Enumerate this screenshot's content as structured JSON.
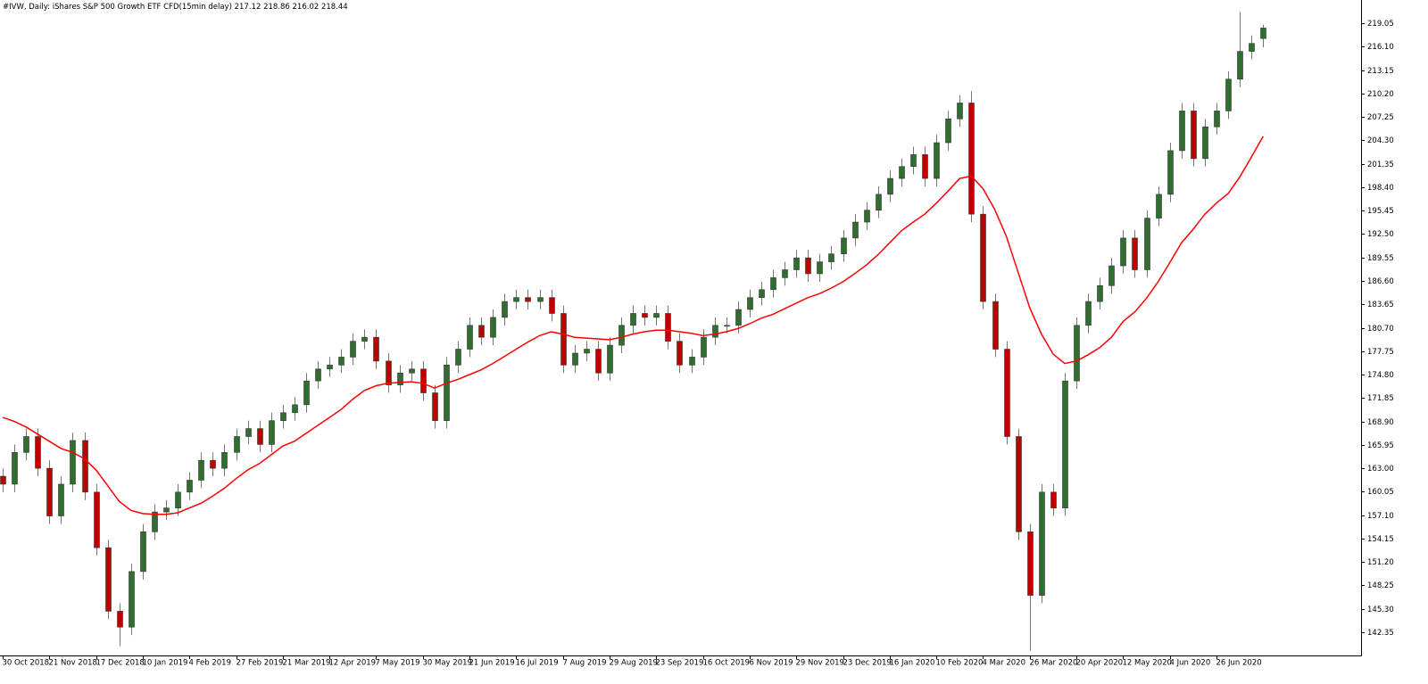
{
  "chart_data": {
    "type": "candlestick",
    "title": "#IVW, Daily:  iShares S&P 500 Growth ETF CFD(15min delay)",
    "categories": [
      "30 Oct 2018",
      null,
      null,
      null,
      "21 Nov 2018",
      null,
      null,
      null,
      "17 Dec 2018",
      null,
      null,
      null,
      "10 Jan 2019",
      null,
      null,
      null,
      "4 Feb 2019",
      null,
      null,
      null,
      "27 Feb 2019",
      null,
      null,
      null,
      "21 Mar 2019",
      null,
      null,
      null,
      "12 Apr 2019",
      null,
      null,
      null,
      "7 May 2019",
      null,
      null,
      null,
      "30 May 2019",
      null,
      null,
      null,
      "21 Jun 2019",
      null,
      null,
      null,
      "16 Jul 2019",
      null,
      null,
      null,
      "7 Aug 2019",
      null,
      null,
      null,
      "29 Aug 2019",
      null,
      null,
      null,
      "23 Sep 2019",
      null,
      null,
      null,
      "16 Oct 2019",
      null,
      null,
      null,
      "6 Nov 2019",
      null,
      null,
      null,
      "29 Nov 2019",
      null,
      null,
      null,
      "23 Dec 2019",
      null,
      null,
      null,
      "16 Jan 2020",
      null,
      null,
      null,
      "10 Feb 2020",
      null,
      null,
      null,
      "4 Mar 2020",
      null,
      null,
      null,
      "26 Mar 2020",
      null,
      null,
      null,
      "20 Apr 2020",
      null,
      null,
      null,
      "12 May 2020",
      null,
      null,
      null,
      "4 Jun 2020",
      null,
      null,
      null,
      "26 Jun 2020",
      null,
      null,
      null,
      null
    ],
    "open": [
      162,
      161,
      165,
      167,
      163,
      157,
      161,
      166.5,
      160,
      153,
      145,
      143,
      150,
      155,
      157.5,
      158,
      160,
      161.5,
      164,
      163,
      165,
      167,
      168,
      166,
      169,
      170,
      171,
      174,
      175.5,
      176,
      177,
      179,
      179.5,
      176.5,
      173.5,
      175,
      175.5,
      172.5,
      169,
      176,
      178,
      181,
      179.5,
      182,
      184,
      184.5,
      184,
      184.5,
      182.5,
      176,
      177.5,
      178,
      175,
      178.5,
      181,
      182.5,
      182,
      182.5,
      179,
      176,
      177,
      179.5,
      181,
      181,
      183,
      184.5,
      185.5,
      187,
      188,
      189.5,
      187.5,
      189,
      190,
      192,
      194,
      195.5,
      197.5,
      199.5,
      201,
      202.5,
      199.5,
      204,
      207,
      209,
      195,
      184,
      178,
      167,
      155,
      147,
      160,
      158,
      174,
      181,
      184,
      186,
      188.5,
      192,
      188,
      194.5,
      197.5,
      203,
      208,
      202,
      206,
      208,
      212,
      215.5,
      217.12
    ],
    "high": [
      163,
      166,
      168,
      168,
      164,
      162,
      167.5,
      167.5,
      161,
      154,
      146,
      151,
      156,
      158.5,
      159,
      161,
      162.5,
      165,
      165,
      166,
      168,
      169,
      169,
      170,
      171,
      172,
      175,
      176.5,
      177,
      178,
      180,
      180.5,
      180.5,
      177.5,
      176,
      176.5,
      176.5,
      173.5,
      177,
      179,
      182,
      182,
      183,
      185,
      185.5,
      185.5,
      185.5,
      185.5,
      183.5,
      178.5,
      179,
      179,
      179.5,
      182,
      183.5,
      183.5,
      183.5,
      183.5,
      180,
      178,
      180.5,
      182,
      182,
      184,
      185.5,
      186.5,
      188,
      189,
      190.5,
      190.5,
      190,
      191,
      193,
      195,
      196.5,
      198.5,
      200.5,
      202,
      203.5,
      203.5,
      205,
      208,
      210,
      210.5,
      196,
      185,
      179,
      168,
      156,
      161,
      161,
      175,
      182,
      185,
      187,
      189.5,
      193,
      193,
      195.5,
      198.5,
      204,
      209,
      209,
      207,
      209,
      213,
      220.5,
      217.5,
      218.86
    ],
    "low": [
      160,
      160,
      164,
      162,
      156,
      156,
      160,
      159,
      152,
      144,
      140.6,
      142,
      149,
      154,
      156.5,
      157,
      159,
      160.5,
      162,
      162,
      164,
      166,
      165,
      165,
      168,
      169,
      170,
      173,
      174.5,
      175,
      176,
      178,
      175.5,
      172.5,
      172.5,
      174,
      171.5,
      168,
      168,
      175,
      177,
      178.5,
      178.5,
      181,
      183,
      183,
      183,
      181.5,
      175,
      175,
      176.5,
      174,
      174,
      177.5,
      180,
      181,
      181,
      178,
      175,
      175,
      176,
      178.5,
      180,
      180,
      182,
      183.5,
      184.5,
      186,
      187,
      186.5,
      186.5,
      188,
      189,
      191,
      193,
      194.5,
      196.5,
      198.5,
      200,
      198.5,
      198.5,
      203,
      206,
      194,
      183,
      177,
      166,
      154,
      140,
      146,
      157,
      157,
      173,
      180,
      183,
      185,
      187.5,
      187,
      187,
      193.5,
      196.5,
      202,
      201,
      201,
      205,
      207,
      211,
      214.5,
      216.02
    ],
    "close": [
      161,
      165,
      167,
      163,
      157,
      161,
      166.5,
      160,
      153,
      145,
      143,
      150,
      155,
      157.5,
      158,
      160,
      161.5,
      164,
      163,
      165,
      167,
      168,
      166,
      169,
      170,
      171,
      174,
      175.5,
      176,
      177,
      179,
      179.5,
      176.5,
      173.5,
      175,
      175.5,
      172.5,
      169,
      176,
      178,
      181,
      179.5,
      182,
      184,
      184.5,
      184,
      184.5,
      182.5,
      176,
      177.5,
      178,
      175,
      178.5,
      181,
      182.5,
      182,
      182.5,
      179,
      176,
      177,
      179.5,
      181,
      181,
      183,
      184.5,
      185.5,
      187,
      188,
      189.5,
      187.5,
      189,
      190,
      192,
      194,
      195.5,
      197.5,
      199.5,
      201,
      202.5,
      199.5,
      204,
      207,
      209,
      195,
      184,
      178,
      167,
      155,
      147,
      160,
      158,
      174,
      181,
      184,
      186,
      188.5,
      192,
      188,
      194.5,
      197.5,
      203,
      208,
      202,
      206,
      208,
      212,
      215.5,
      216.5,
      218.44
    ],
    "ma": [
      169.4,
      168.9,
      168.2,
      167.3,
      166.4,
      165.5,
      165,
      164.2,
      162.8,
      160.8,
      158.8,
      157.7,
      157.3,
      157.2,
      157.2,
      157.4,
      158,
      158.6,
      159.5,
      160.5,
      161.7,
      162.8,
      163.6,
      164.7,
      165.8,
      166.4,
      167.4,
      168.4,
      169.4,
      170.4,
      171.7,
      172.8,
      173.4,
      173.7,
      173.8,
      173.9,
      173.7,
      173.1,
      173.7,
      174.2,
      174.8,
      175.4,
      176.2,
      177.1,
      178,
      178.9,
      179.7,
      180.2,
      179.9,
      179.5,
      179.4,
      179.3,
      179.2,
      179.5,
      179.9,
      180.2,
      180.4,
      180.4,
      180.2,
      180,
      179.7,
      179.9,
      180.2,
      180.6,
      181.2,
      181.9,
      182.4,
      183.1,
      183.8,
      184.5,
      185,
      185.7,
      186.5,
      187.5,
      188.6,
      189.9,
      191.4,
      192.9,
      194,
      195,
      196.4,
      197.9,
      199.5,
      199.8,
      198.2,
      195.6,
      192.2,
      187.7,
      183.2,
      179.9,
      177.4,
      176.2,
      176.5,
      177.3,
      178.2,
      179.5,
      181.5,
      182.7,
      184.4,
      186.5,
      188.9,
      191.4,
      193.1,
      195,
      196.4,
      197.6,
      199.7,
      202.2,
      204.8
    ],
    "up_color": "#2f6e2f",
    "down_color": "#c00000",
    "ma_color": "#ff0000",
    "ylim": [
      139.43,
      221.97
    ],
    "yticks": [
      142.35,
      {
        "value": 145.3,
        "label": "145.30"
      },
      148.25,
      {
        "value": 151.2,
        "label": "151.20"
      },
      154.15,
      {
        "value": 157.1,
        "label": "157.10"
      },
      160.05,
      {
        "value": 163,
        "label": "163.00"
      },
      165.95,
      {
        "value": 168.9,
        "label": "168.90"
      },
      171.85,
      {
        "value": 174.8,
        "label": "174.80"
      },
      177.75,
      {
        "value": 180.7,
        "label": "180.70"
      },
      183.65,
      {
        "value": 186.6,
        "label": "186.60"
      },
      189.55,
      {
        "value": 192.5,
        "label": "192.50"
      },
      195.45,
      {
        "value": 198.4,
        "label": "198.40"
      },
      201.35,
      {
        "value": 204.3,
        "label": "204.30"
      },
      207.25,
      {
        "value": 210.2,
        "label": "210.20"
      },
      213.15,
      {
        "value": 216.1,
        "label": "216.10"
      },
      219.05
    ]
  }
}
